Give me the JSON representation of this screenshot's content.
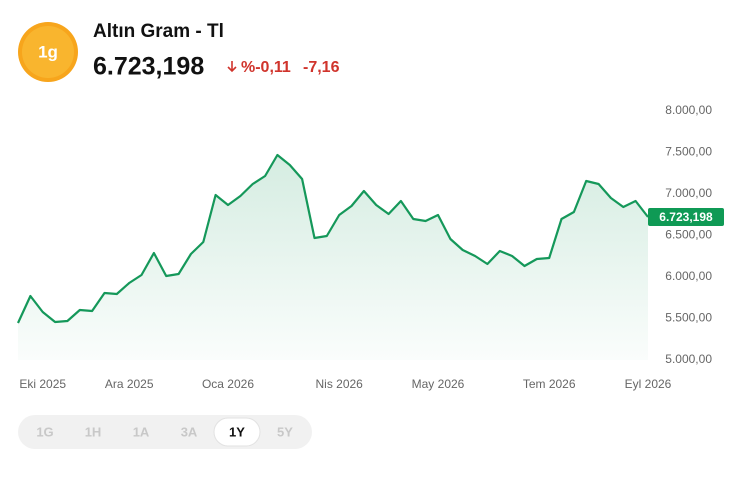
{
  "header": {
    "icon_label": "1g",
    "title": "Altın Gram - Tl",
    "price": "6.723,198",
    "change_percent": "%-0,11",
    "change": "-7,16"
  },
  "chart_data": {
    "type": "area",
    "color": "#15985a",
    "categories": [
      null,
      null,
      "Eki 2025",
      null,
      null,
      null,
      null,
      null,
      null,
      "Ara 2025",
      null,
      null,
      null,
      null,
      null,
      null,
      null,
      "Oca 2026",
      null,
      null,
      null,
      null,
      null,
      null,
      null,
      null,
      "Nis 2026",
      null,
      null,
      null,
      null,
      null,
      null,
      null,
      "May 2026",
      null,
      null,
      null,
      null,
      null,
      null,
      null,
      null,
      "Tem 2026",
      null,
      null,
      null,
      null,
      null,
      null,
      null,
      "Eyl 2026"
    ],
    "values": [
      5446,
      5771,
      5578,
      5458,
      5470,
      5602,
      5590,
      5807,
      5795,
      5928,
      6024,
      6289,
      6012,
      6036,
      6277,
      6422,
      6988,
      6867,
      6976,
      7120,
      7217,
      7470,
      7349,
      7181,
      6470,
      6494,
      6747,
      6855,
      7036,
      6867,
      6759,
      6916,
      6699,
      6675,
      6747,
      6458,
      6325,
      6253,
      6157,
      6313,
      6253,
      6133,
      6217,
      6229,
      6699,
      6783,
      7157,
      7120,
      6952,
      6843,
      6916,
      6723.198
    ],
    "ylim": [
      5000,
      8000
    ],
    "yticks": [
      {
        "value": 5000,
        "label": "5.000,00"
      },
      {
        "value": 5500,
        "label": "5.500,00"
      },
      {
        "value": 6000,
        "label": "6.000,00"
      },
      {
        "value": 6500,
        "label": "6.500,00"
      },
      {
        "value": 7000,
        "label": "7.000,00"
      },
      {
        "value": 7500,
        "label": "7.500,00"
      },
      {
        "value": 8000,
        "label": "8.000,00"
      }
    ]
  },
  "range_buttons": [
    "1G",
    "1H",
    "1A",
    "3A",
    "1Y",
    "5Y"
  ],
  "active_range": "1Y"
}
